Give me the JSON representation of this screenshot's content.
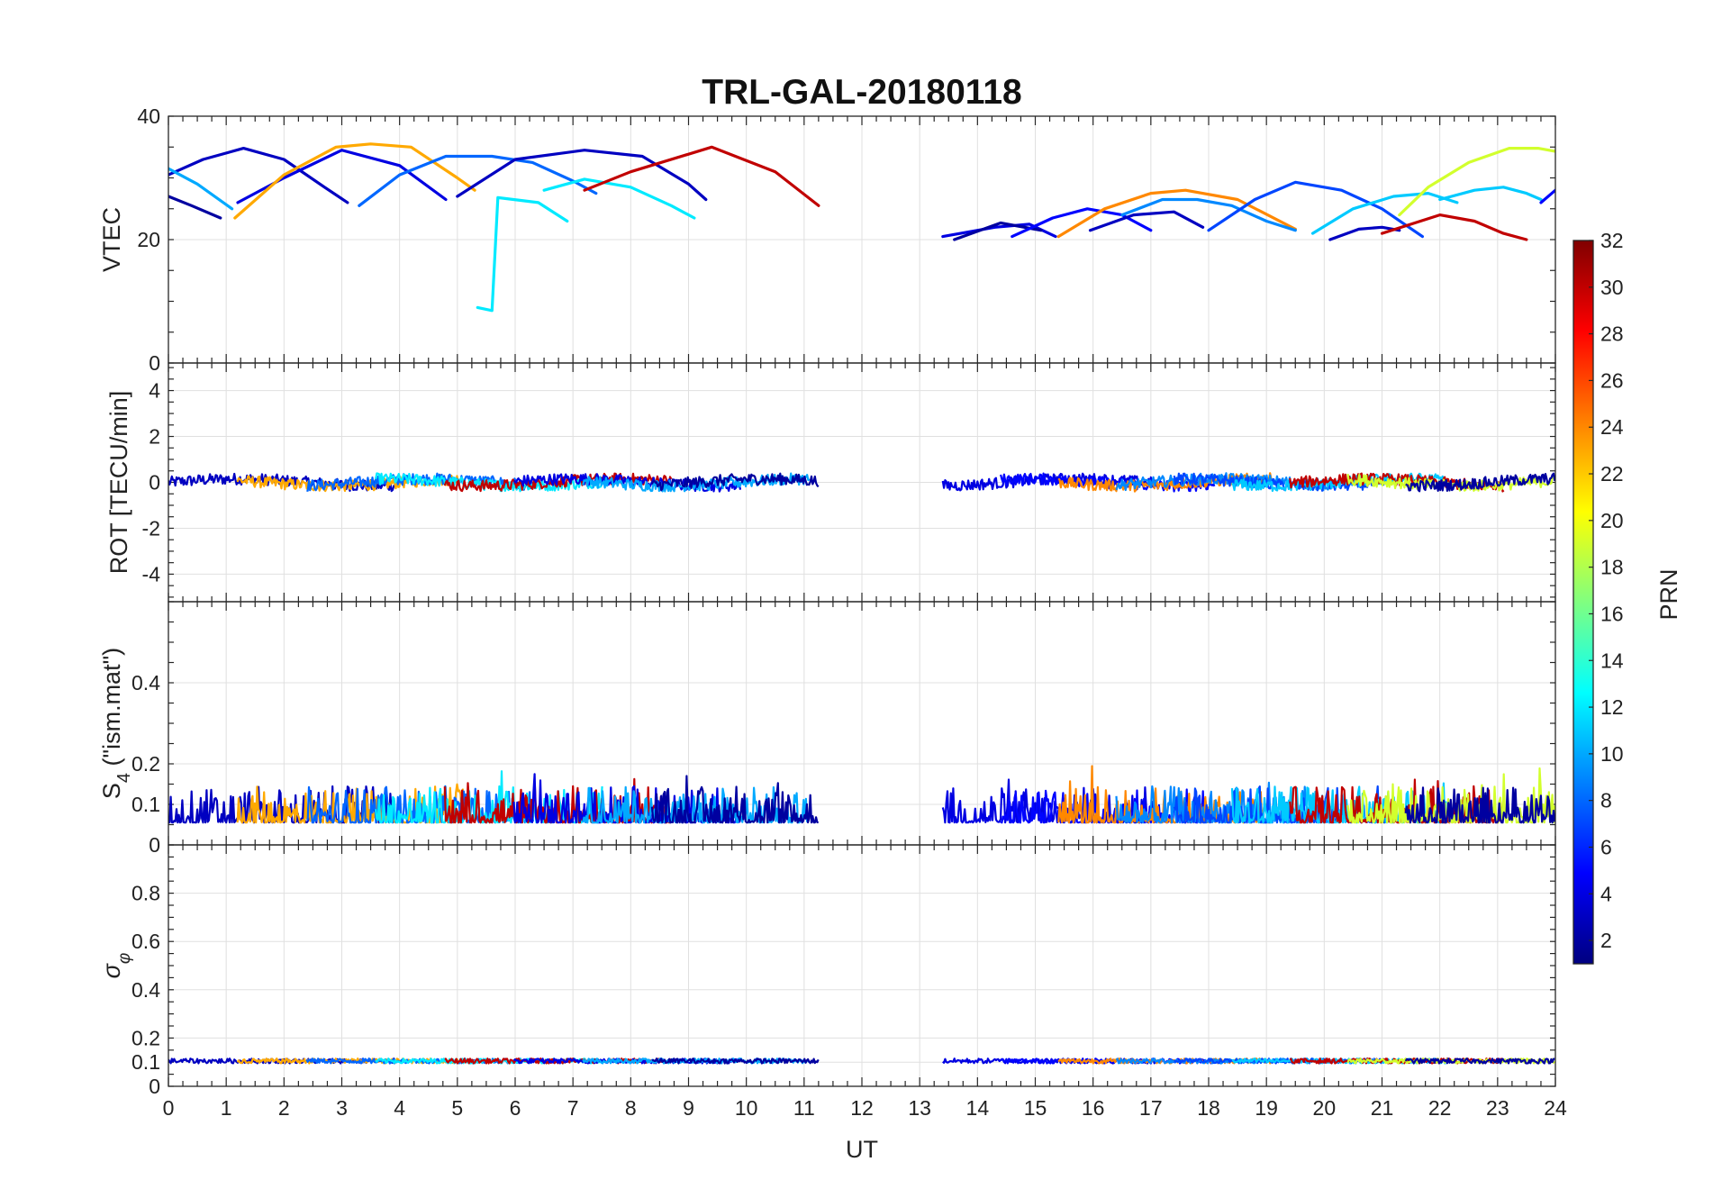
{
  "chart_data": {
    "type": "line",
    "title": "TRL-GAL-20180118",
    "xlabel": "UT",
    "xlim": [
      0,
      24
    ],
    "xticks": [
      "0",
      "1",
      "2",
      "3",
      "4",
      "5",
      "6",
      "7",
      "8",
      "9",
      "10",
      "11",
      "12",
      "13",
      "14",
      "15",
      "16",
      "17",
      "18",
      "19",
      "20",
      "21",
      "22",
      "23",
      "24"
    ],
    "colorbar": {
      "label": "PRN",
      "range": [
        1,
        32
      ],
      "ticks": [
        "2",
        "4",
        "6",
        "8",
        "10",
        "12",
        "14",
        "16",
        "18",
        "20",
        "22",
        "24",
        "26",
        "28",
        "30",
        "32"
      ],
      "colormap": "jet"
    },
    "panels": [
      {
        "id": "vtec",
        "ylabel": "VTEC",
        "ylim": [
          0,
          40
        ],
        "yticks": [
          "0",
          "20",
          "40"
        ],
        "series": [
          {
            "prn": 2,
            "x": [
              0,
              0.4,
              0.9
            ],
            "y": [
              27,
              25.5,
              23.5
            ]
          },
          {
            "prn": 3,
            "x": [
              0,
              0.6,
              1.3,
              2.0,
              2.7,
              3.1
            ],
            "y": [
              30.5,
              33,
              34.8,
              33,
              28.5,
              26
            ]
          },
          {
            "prn": 4,
            "x": [
              1.2,
              2.0,
              3.0,
              4.0,
              4.8
            ],
            "y": [
              26,
              30,
              34.5,
              32,
              26.5
            ]
          },
          {
            "prn": 10,
            "x": [
              0,
              0.5,
              1.1
            ],
            "y": [
              31.5,
              29,
              25
            ]
          },
          {
            "prn": 23,
            "x": [
              1.15,
              2.0,
              2.9,
              3.5,
              4.2,
              5.0,
              5.3
            ],
            "y": [
              23.5,
              30.5,
              35,
              35.5,
              35,
              30,
              28
            ]
          },
          {
            "prn": 8,
            "x": [
              3.3,
              4.0,
              4.8,
              5.6,
              6.3,
              7.0,
              7.4
            ],
            "y": [
              25.5,
              30.5,
              33.5,
              33.5,
              32.5,
              29.5,
              27.5
            ]
          },
          {
            "prn": 12,
            "x": [
              5.35,
              5.6,
              5.6,
              5.7,
              6.4,
              6.9
            ],
            "y": [
              9,
              8.5,
              8.5,
              26.8,
              26,
              23
            ]
          },
          {
            "prn": 3,
            "x": [
              5.0,
              6.0,
              7.2,
              8.2,
              9.0,
              9.3
            ],
            "y": [
              27,
              33,
              34.5,
              33.5,
              29,
              26.5
            ]
          },
          {
            "prn": 12,
            "x": [
              6.5,
              7.2,
              8.0,
              8.7,
              9.1
            ],
            "y": [
              28,
              29.8,
              28.5,
              25.5,
              23.5
            ]
          },
          {
            "prn": 30,
            "x": [
              7.2,
              8.0,
              9.4,
              10.5,
              11.25
            ],
            "y": [
              28,
              31,
              35,
              31,
              25.5
            ]
          },
          {
            "prn": 4,
            "x": [
              13.4,
              14.3,
              14.9,
              15.35
            ],
            "y": [
              20.5,
              22,
              22.5,
              20.5
            ]
          },
          {
            "prn": 2,
            "x": [
              13.6,
              14.4,
              15.1
            ],
            "y": [
              20,
              22.7,
              21.5
            ]
          },
          {
            "prn": 5,
            "x": [
              14.6,
              15.3,
              15.9,
              16.5,
              17.0
            ],
            "y": [
              20.5,
              23.5,
              25,
              24,
              21.5
            ]
          },
          {
            "prn": 24,
            "x": [
              15.4,
              16.2,
              17.0,
              17.6,
              18.5,
              19.5
            ],
            "y": [
              20.5,
              25,
              27.5,
              28,
              26.5,
              21.7
            ]
          },
          {
            "prn": 3,
            "x": [
              15.95,
              16.7,
              17.4,
              17.9
            ],
            "y": [
              21.5,
              24,
              24.5,
              22
            ]
          },
          {
            "prn": 9,
            "x": [
              16.5,
              17.2,
              17.8,
              18.4,
              19.0,
              19.5
            ],
            "y": [
              24,
              26.5,
              26.5,
              25.5,
              23,
              21.5
            ]
          },
          {
            "prn": 7,
            "x": [
              18.0,
              18.8,
              19.5,
              20.3,
              21.0,
              21.7
            ],
            "y": [
              21.5,
              26.5,
              29.3,
              28,
              25,
              20.5
            ]
          },
          {
            "prn": 11,
            "x": [
              19.8,
              20.5,
              21.2,
              21.8,
              22.3
            ],
            "y": [
              21,
              25,
              27,
              27.5,
              26
            ]
          },
          {
            "prn": 3,
            "x": [
              20.1,
              20.6,
              21.0,
              21.3
            ],
            "y": [
              20,
              21.7,
              22,
              21.5
            ]
          },
          {
            "prn": 30,
            "x": [
              21.0,
              21.5,
              22.0,
              22.6,
              23.1,
              23.5
            ],
            "y": [
              21,
              22.5,
              24,
              23,
              21,
              20
            ]
          },
          {
            "prn": 19,
            "x": [
              21.3,
              21.8,
              22.5,
              23.2,
              23.7,
              24
            ],
            "y": [
              24,
              28.5,
              32.5,
              34.8,
              34.8,
              34.3
            ]
          },
          {
            "prn": 11,
            "x": [
              22.0,
              22.6,
              23.1,
              23.5,
              23.75
            ],
            "y": [
              26.5,
              28,
              28.5,
              27.5,
              26.5
            ]
          },
          {
            "prn": 5,
            "x": [
              23.75,
              24
            ],
            "y": [
              26,
              28
            ]
          }
        ]
      },
      {
        "id": "rot",
        "ylabel": "ROT [TECU/min]",
        "ylim": [
          -5.2,
          5.2
        ],
        "yticks": [
          "-4",
          "-2",
          "0",
          "2",
          "4"
        ],
        "description_windows": [
          [
            0,
            11.25
          ],
          [
            13.4,
            24
          ]
        ]
      },
      {
        "id": "s4",
        "ylabel": "S4 (\"ism.mat\")",
        "ylim": [
          0,
          0.6
        ],
        "yticks": [
          "0",
          "0.1",
          "0.2",
          "0.4"
        ],
        "windows": [
          [
            0,
            11.25
          ],
          [
            13.4,
            24
          ]
        ]
      },
      {
        "id": "sigma_phi",
        "ylabel": "σφ",
        "ylim": [
          0,
          1
        ],
        "yticks": [
          "0",
          "0.1",
          "0.2",
          "0.4",
          "0.6",
          "0.8"
        ],
        "windows": [
          [
            0,
            11.25
          ],
          [
            13.4,
            24
          ]
        ]
      }
    ]
  }
}
